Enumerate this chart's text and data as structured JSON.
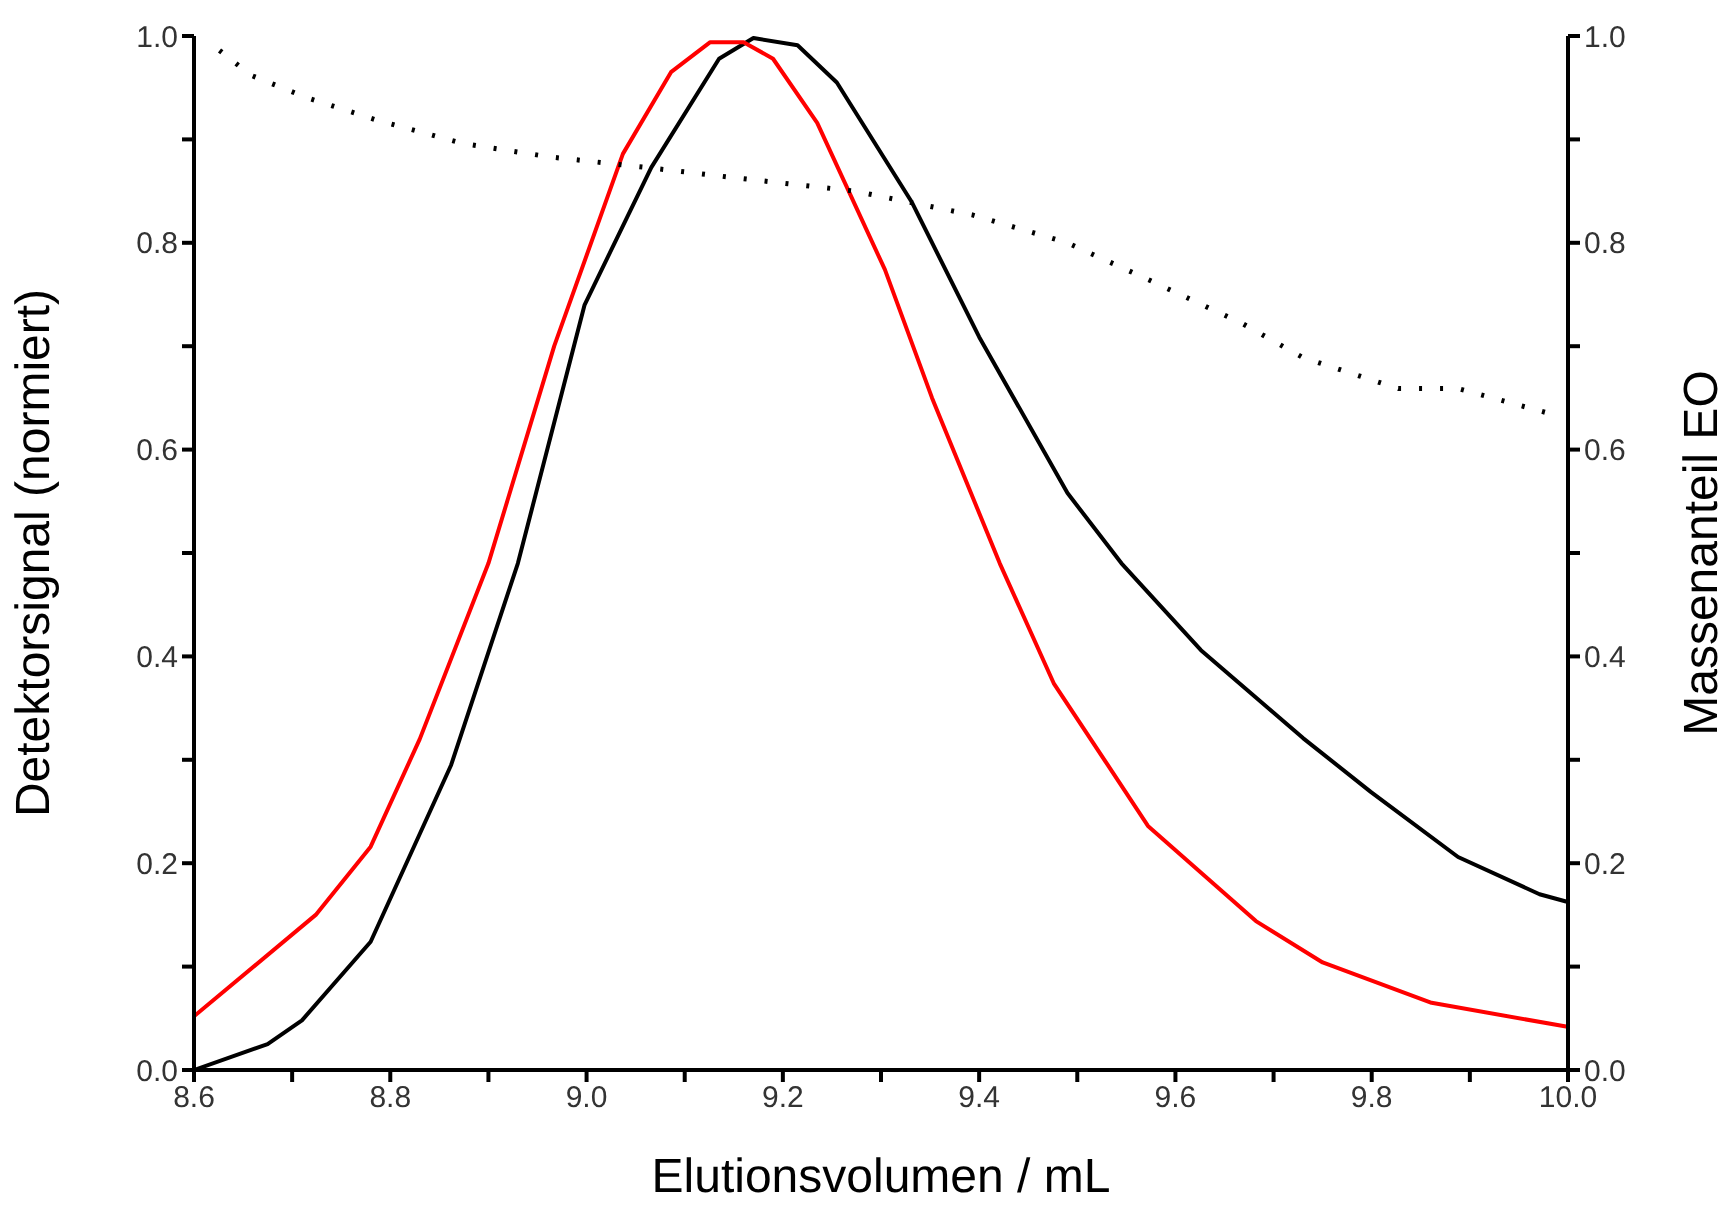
{
  "chart_data": {
    "type": "line",
    "xlabel": "Elutionsvolumen / mL",
    "ylabel": "Detektorsignal (normiert)",
    "y2label": "Massenanteil EO",
    "xlim": [
      8.6,
      10.0
    ],
    "xticks": [
      8.6,
      {
        "value": 8.7,
        "label": null
      },
      8.8,
      {
        "value": 8.9,
        "label": null
      },
      {
        "value": 9.0,
        "label": "9.0"
      },
      {
        "value": 9.1,
        "label": null
      },
      9.2,
      {
        "value": 9.3,
        "label": null
      },
      9.4,
      {
        "value": 9.5,
        "label": null
      },
      9.6,
      {
        "value": 9.7,
        "label": null
      },
      9.8,
      {
        "value": 9.9,
        "label": null
      },
      {
        "value": 10.0,
        "label": "10.0"
      }
    ],
    "ylim": [
      0,
      1
    ],
    "yticks": [
      {
        "value": 0,
        "label": "0.0"
      },
      {
        "value": 0.1,
        "label": null
      },
      0.2,
      {
        "value": 0.3,
        "label": null
      },
      0.4,
      {
        "value": 0.5,
        "label": null
      },
      0.6,
      {
        "value": 0.7,
        "label": null
      },
      0.8,
      {
        "value": 0.9,
        "label": null
      },
      {
        "value": 1,
        "label": "1.0"
      }
    ],
    "y2lim": [
      0,
      1
    ],
    "y2ticks": [
      {
        "value": 0,
        "label": "0.0"
      },
      {
        "value": 0.1,
        "label": null
      },
      0.2,
      {
        "value": 0.3,
        "label": null
      },
      0.4,
      {
        "value": 0.5,
        "label": null
      },
      0.6,
      {
        "value": 0.7,
        "label": null
      },
      0.8,
      {
        "value": 0.9,
        "label": null
      },
      {
        "value": 1,
        "label": "1.0"
      }
    ],
    "marker": "none",
    "series": [
      {
        "color": "#000000",
        "line_style": "solid",
        "x": [
          8.6,
          8.675,
          8.71,
          8.78,
          8.862,
          8.93,
          8.998,
          9.066,
          9.135,
          9.17,
          9.215,
          9.255,
          9.331,
          9.4,
          9.49,
          9.545,
          9.626,
          9.73,
          9.799,
          9.888,
          9.971,
          9.998
        ],
        "values": [
          0.0,
          0.025,
          0.048,
          0.124,
          0.295,
          0.49,
          0.74,
          0.873,
          0.978,
          0.998,
          0.991,
          0.955,
          0.84,
          0.709,
          0.558,
          0.49,
          0.406,
          0.321,
          0.269,
          0.206,
          0.17,
          0.163
        ]
      },
      {
        "color": "#ff0000",
        "line_style": "solid",
        "x": [
          8.6,
          8.724,
          8.78,
          8.83,
          8.9,
          8.967,
          9.037,
          9.086,
          9.126,
          9.16,
          9.19,
          9.235,
          9.304,
          9.352,
          9.421,
          9.476,
          9.531,
          9.572,
          9.682,
          9.75,
          9.861,
          9.998
        ],
        "values": [
          0.052,
          0.15,
          0.216,
          0.32,
          0.49,
          0.7,
          0.886,
          0.965,
          0.994,
          0.994,
          0.978,
          0.916,
          0.774,
          0.65,
          0.49,
          0.374,
          0.295,
          0.236,
          0.144,
          0.104,
          0.065,
          0.042
        ]
      },
      {
        "color": "#000000",
        "line_style": "dotted",
        "axis": "y2",
        "x": [
          8.626,
          8.658,
          8.716,
          8.785,
          8.874,
          8.963,
          9.06,
          9.15,
          9.273,
          9.393,
          9.49,
          9.58,
          9.668,
          9.73,
          9.827,
          9.888,
          9.977
        ],
        "values": [
          0.986,
          0.962,
          0.94,
          0.919,
          0.896,
          0.883,
          0.873,
          0.863,
          0.85,
          0.827,
          0.8,
          0.761,
          0.722,
          0.689,
          0.659,
          0.659,
          0.636
        ]
      }
    ]
  }
}
